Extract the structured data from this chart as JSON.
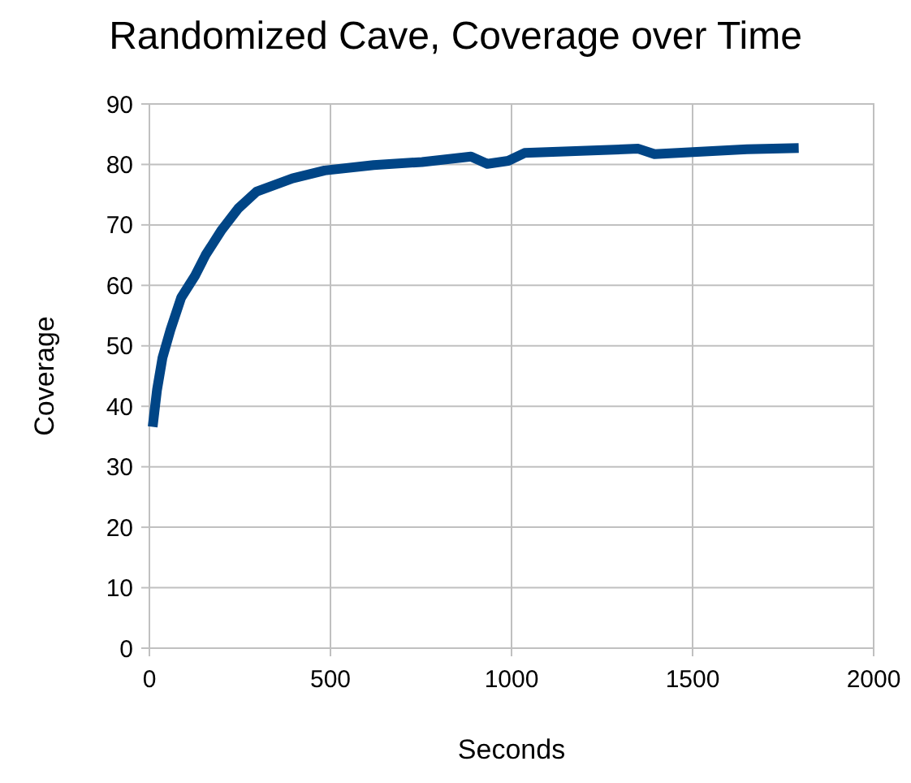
{
  "chart_data": {
    "type": "line",
    "title": "Randomized Cave, Coverage over Time",
    "xlabel": "Seconds",
    "ylabel": "Coverage",
    "series": [
      {
        "color": "#004586",
        "x": [
          9,
          21,
          36,
          58,
          88,
          126,
          155,
          200,
          245,
          296,
          395,
          484,
          619,
          753,
          888,
          933,
          991,
          1036,
          1350,
          1395,
          1650,
          1793
        ],
        "values": [
          36.6,
          42.7,
          48,
          52.6,
          58,
          61.6,
          65,
          69.2,
          72.7,
          75.5,
          77.7,
          79,
          79.9,
          80.4,
          81.3,
          80.1,
          80.6,
          81.9,
          82.6,
          81.7,
          82.5,
          82.7
        ]
      }
    ],
    "xlim": [
      0,
      2000
    ],
    "xticks": [
      0,
      500,
      1000,
      1500,
      2000
    ],
    "ylim": [
      0,
      90
    ],
    "yticks": [
      0,
      10,
      20,
      30,
      40,
      50,
      60,
      70,
      80,
      90
    ],
    "grid": true,
    "marker": "none",
    "line_style": "solid"
  }
}
